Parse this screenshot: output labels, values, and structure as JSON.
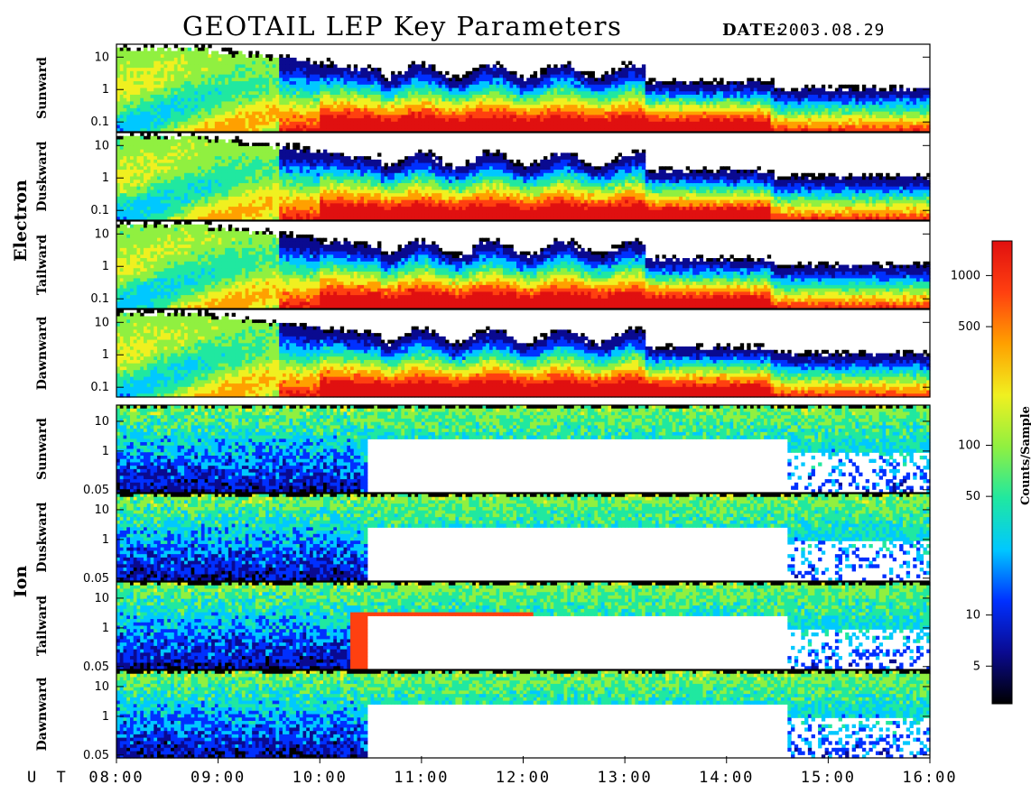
{
  "chart_data": {
    "type": "heatmap",
    "title": "GEOTAIL LEP Key Parameters",
    "date_label": "DATE:",
    "date_value": "2003.08.29",
    "x_axis_prefix": "U T",
    "x_ticks": [
      "08:00",
      "09:00",
      "10:00",
      "11:00",
      "12:00",
      "13:00",
      "14:00",
      "15:00",
      "16:00"
    ],
    "x_range": [
      8,
      16
    ],
    "colorbar": {
      "label": "Counts/Sample",
      "scale": "log",
      "range": [
        3,
        1600
      ],
      "ticks": [
        {
          "value": 1000,
          "label": "1000"
        },
        {
          "value": 500,
          "label": "500"
        },
        {
          "value": 100,
          "label": "100"
        },
        {
          "value": 50,
          "label": "50"
        },
        {
          "value": 10,
          "label": "10"
        },
        {
          "value": 5,
          "label": "5"
        }
      ],
      "colors": [
        "#000000",
        "#0a0a90",
        "#0030ff",
        "#00c8ff",
        "#20e8a0",
        "#90f040",
        "#f0f020",
        "#ffa000",
        "#ff4010",
        "#e01010"
      ]
    },
    "groups": [
      {
        "name": "Electron",
        "y_scale": "log",
        "y_range": [
          0.05,
          25
        ],
        "y_ticks": [
          {
            "value": 10,
            "label": "10"
          },
          {
            "value": 1,
            "label": "1"
          },
          {
            "value": 0.1,
            "label": "0.1"
          }
        ],
        "panels": [
          {
            "name": "Sunward"
          },
          {
            "name": "Duskward"
          },
          {
            "name": "Tailward"
          },
          {
            "name": "Dawnward"
          }
        ]
      },
      {
        "name": "Ion",
        "y_scale": "log",
        "y_range": [
          0.04,
          35
        ],
        "y_ticks": [
          {
            "value": 10,
            "label": "10"
          },
          {
            "value": 1,
            "label": "1"
          },
          {
            "value": 0.05,
            "label": "0.05"
          }
        ],
        "panels": [
          {
            "name": "Sunward"
          },
          {
            "name": "Duskward"
          },
          {
            "name": "Tailward"
          },
          {
            "name": "Dawnward"
          }
        ]
      }
    ]
  }
}
